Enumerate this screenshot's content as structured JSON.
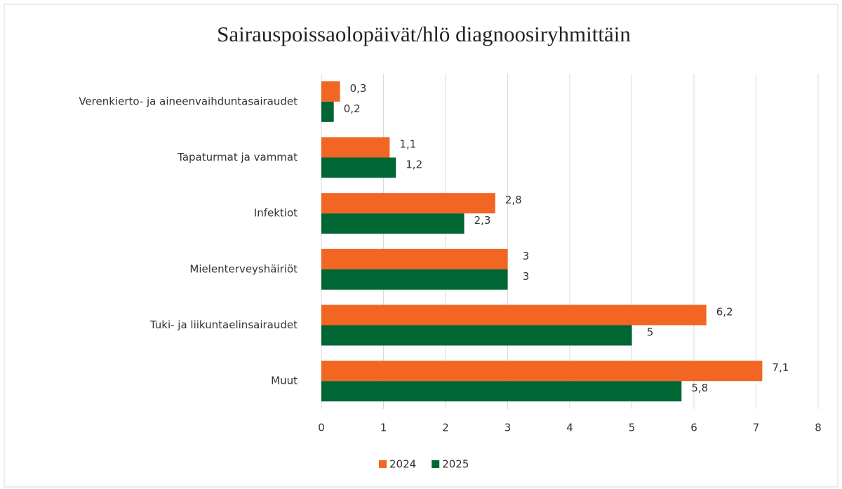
{
  "chart_data": {
    "type": "bar",
    "orientation": "horizontal",
    "title": "Sairauspoissaolopäivät/hlö diagnoosiryhmittäin",
    "categories": [
      "Verenkierto- ja aineenvaihduntasairaudet",
      "Tapaturmat ja vammat",
      "Infektiot",
      "Mielenterveyshäiriöt",
      "Tuki- ja liikuntaelinsairaudet",
      "Muut"
    ],
    "series": [
      {
        "name": "2024",
        "color": "#f26522",
        "values": [
          0.3,
          1.1,
          2.8,
          3,
          6.2,
          7.1
        ],
        "value_labels": [
          "0,3",
          "1,1",
          "2,8",
          "3",
          "6,2",
          "7,1"
        ]
      },
      {
        "name": "2025",
        "color": "#006633",
        "values": [
          0.2,
          1.2,
          2.3,
          3,
          5,
          5.8
        ],
        "value_labels": [
          "0,2",
          "1,2",
          "2,3",
          "3",
          "5",
          "5,8"
        ]
      }
    ],
    "xlim": [
      0,
      8
    ],
    "xticks": [
      0,
      1,
      2,
      3,
      4,
      5,
      6,
      7,
      8
    ],
    "grid": true,
    "legend": "bottom"
  }
}
